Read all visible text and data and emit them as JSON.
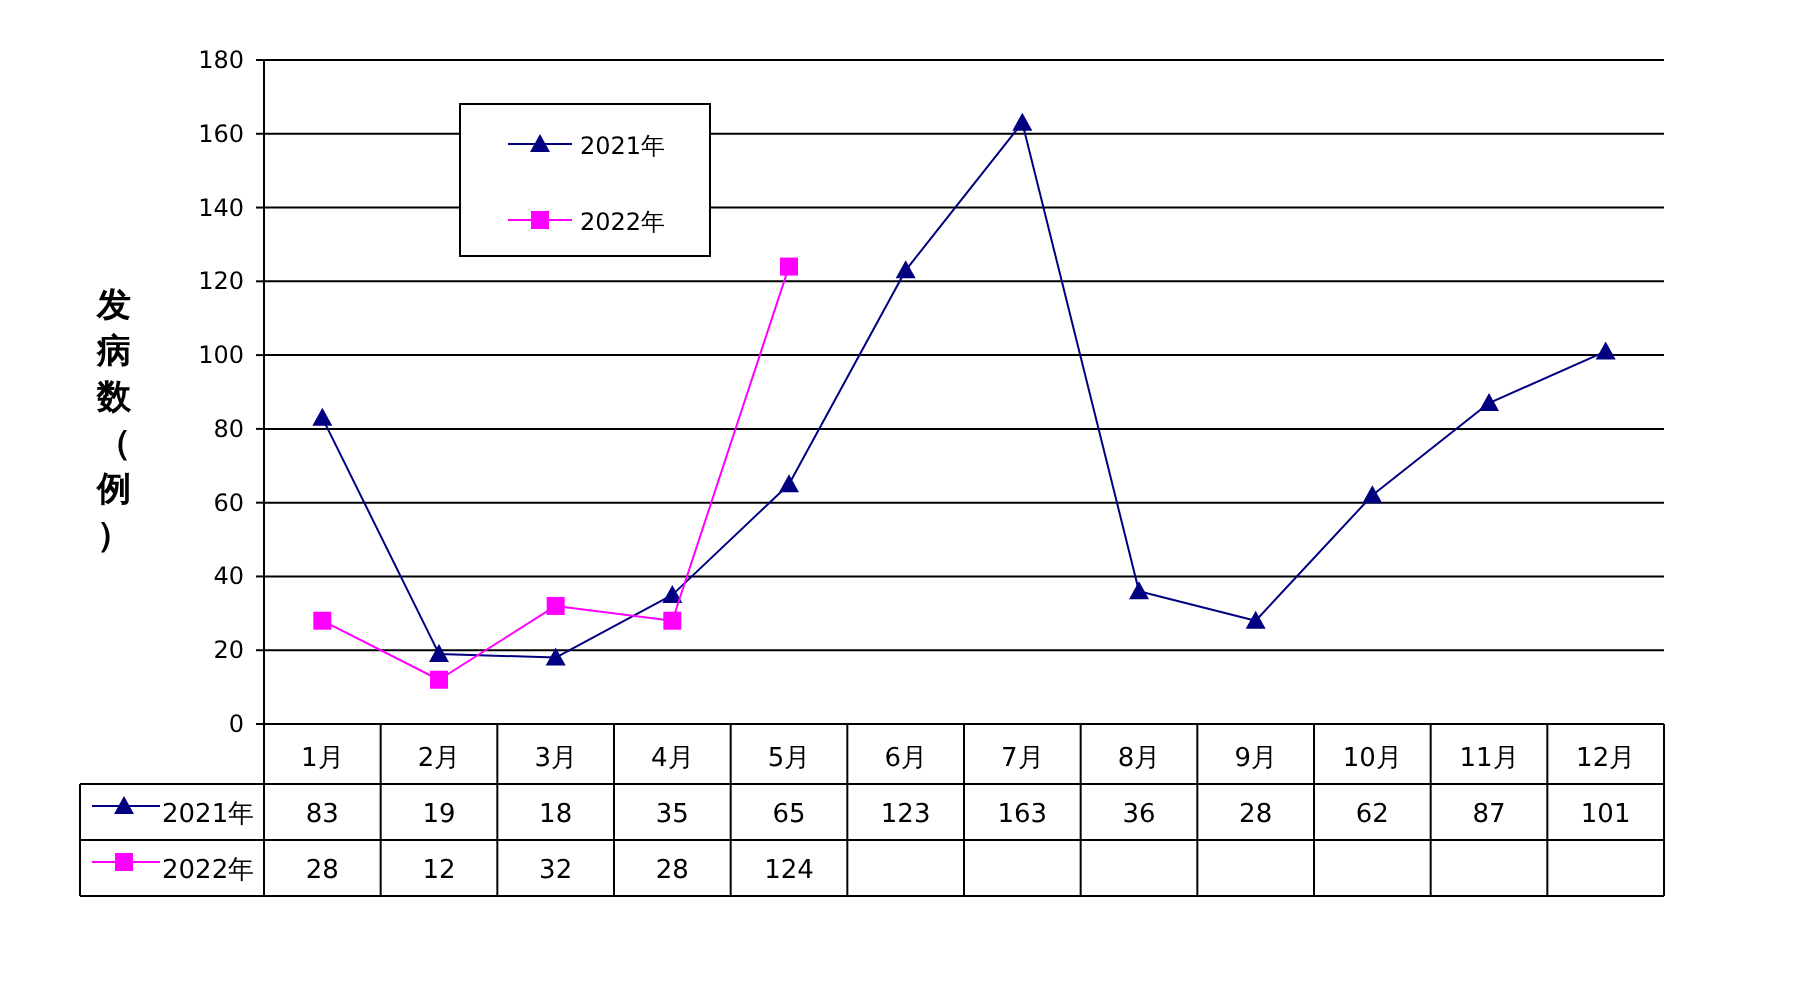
{
  "chart_data": {
    "type": "line",
    "ylabel": "发病数（例）",
    "categories": [
      "1月",
      "2月",
      "3月",
      "4月",
      "5月",
      "6月",
      "7月",
      "8月",
      "9月",
      "10月",
      "11月",
      "12月"
    ],
    "series": [
      {
        "name": "2021年",
        "color": "#000080",
        "marker": "triangle",
        "values": [
          83,
          19,
          18,
          35,
          65,
          123,
          163,
          36,
          28,
          62,
          87,
          101
        ]
      },
      {
        "name": "2022年",
        "color": "#ff00ff",
        "marker": "square",
        "values": [
          28,
          12,
          32,
          28,
          124,
          null,
          null,
          null,
          null,
          null,
          null,
          null
        ]
      }
    ],
    "ylim": [
      0,
      180
    ],
    "yticks": [
      0,
      20,
      40,
      60,
      80,
      100,
      120,
      140,
      160,
      180
    ],
    "grid": "y",
    "legend": "top left",
    "data_labels": true
  }
}
